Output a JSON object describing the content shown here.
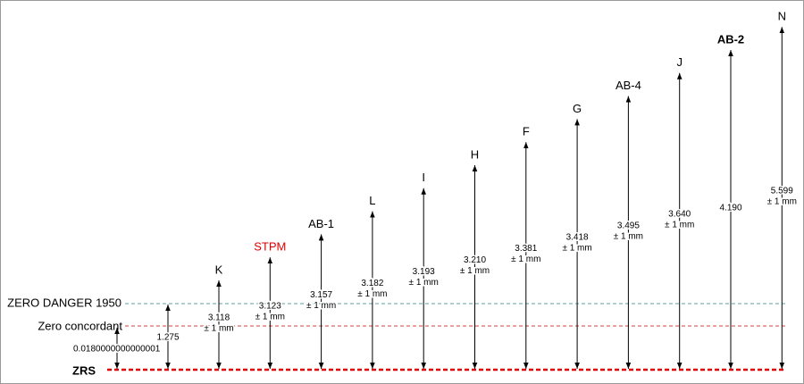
{
  "levels": [
    {
      "label": "ZRS",
      "bold": true
    },
    {
      "label": "Zero concordant"
    },
    {
      "label": "ZERO DANGER 1950"
    }
  ],
  "offsets": [
    {
      "value": "0.0180000000000001"
    },
    {
      "value": "1.275"
    }
  ],
  "nodes": [
    {
      "label": "K",
      "value": "3.118",
      "tolerance": "± 1 mm"
    },
    {
      "label": "STPM",
      "value": "3.123",
      "tolerance": "± 1 mm",
      "color": "#e00000"
    },
    {
      "label": "AB-1",
      "value": "3.157",
      "tolerance": "± 1 mm"
    },
    {
      "label": "L",
      "value": "3.182",
      "tolerance": "± 1 mm"
    },
    {
      "label": "I",
      "value": "3.193",
      "tolerance": "± 1 mm"
    },
    {
      "label": "H",
      "value": "3.210",
      "tolerance": "± 1 mm"
    },
    {
      "label": "F",
      "value": "3.381",
      "tolerance": "± 1 mm"
    },
    {
      "label": "G",
      "value": "3.418",
      "tolerance": "± 1 mm"
    },
    {
      "label": "AB-4",
      "value": "3.495",
      "tolerance": "± 1 mm"
    },
    {
      "label": "J",
      "value": "3.640",
      "tolerance": "± 1 mm"
    },
    {
      "label": "AB-2",
      "value": "4.190",
      "bold": true
    },
    {
      "label": "N",
      "value": "5.599",
      "tolerance": "± 1 mm"
    }
  ]
}
